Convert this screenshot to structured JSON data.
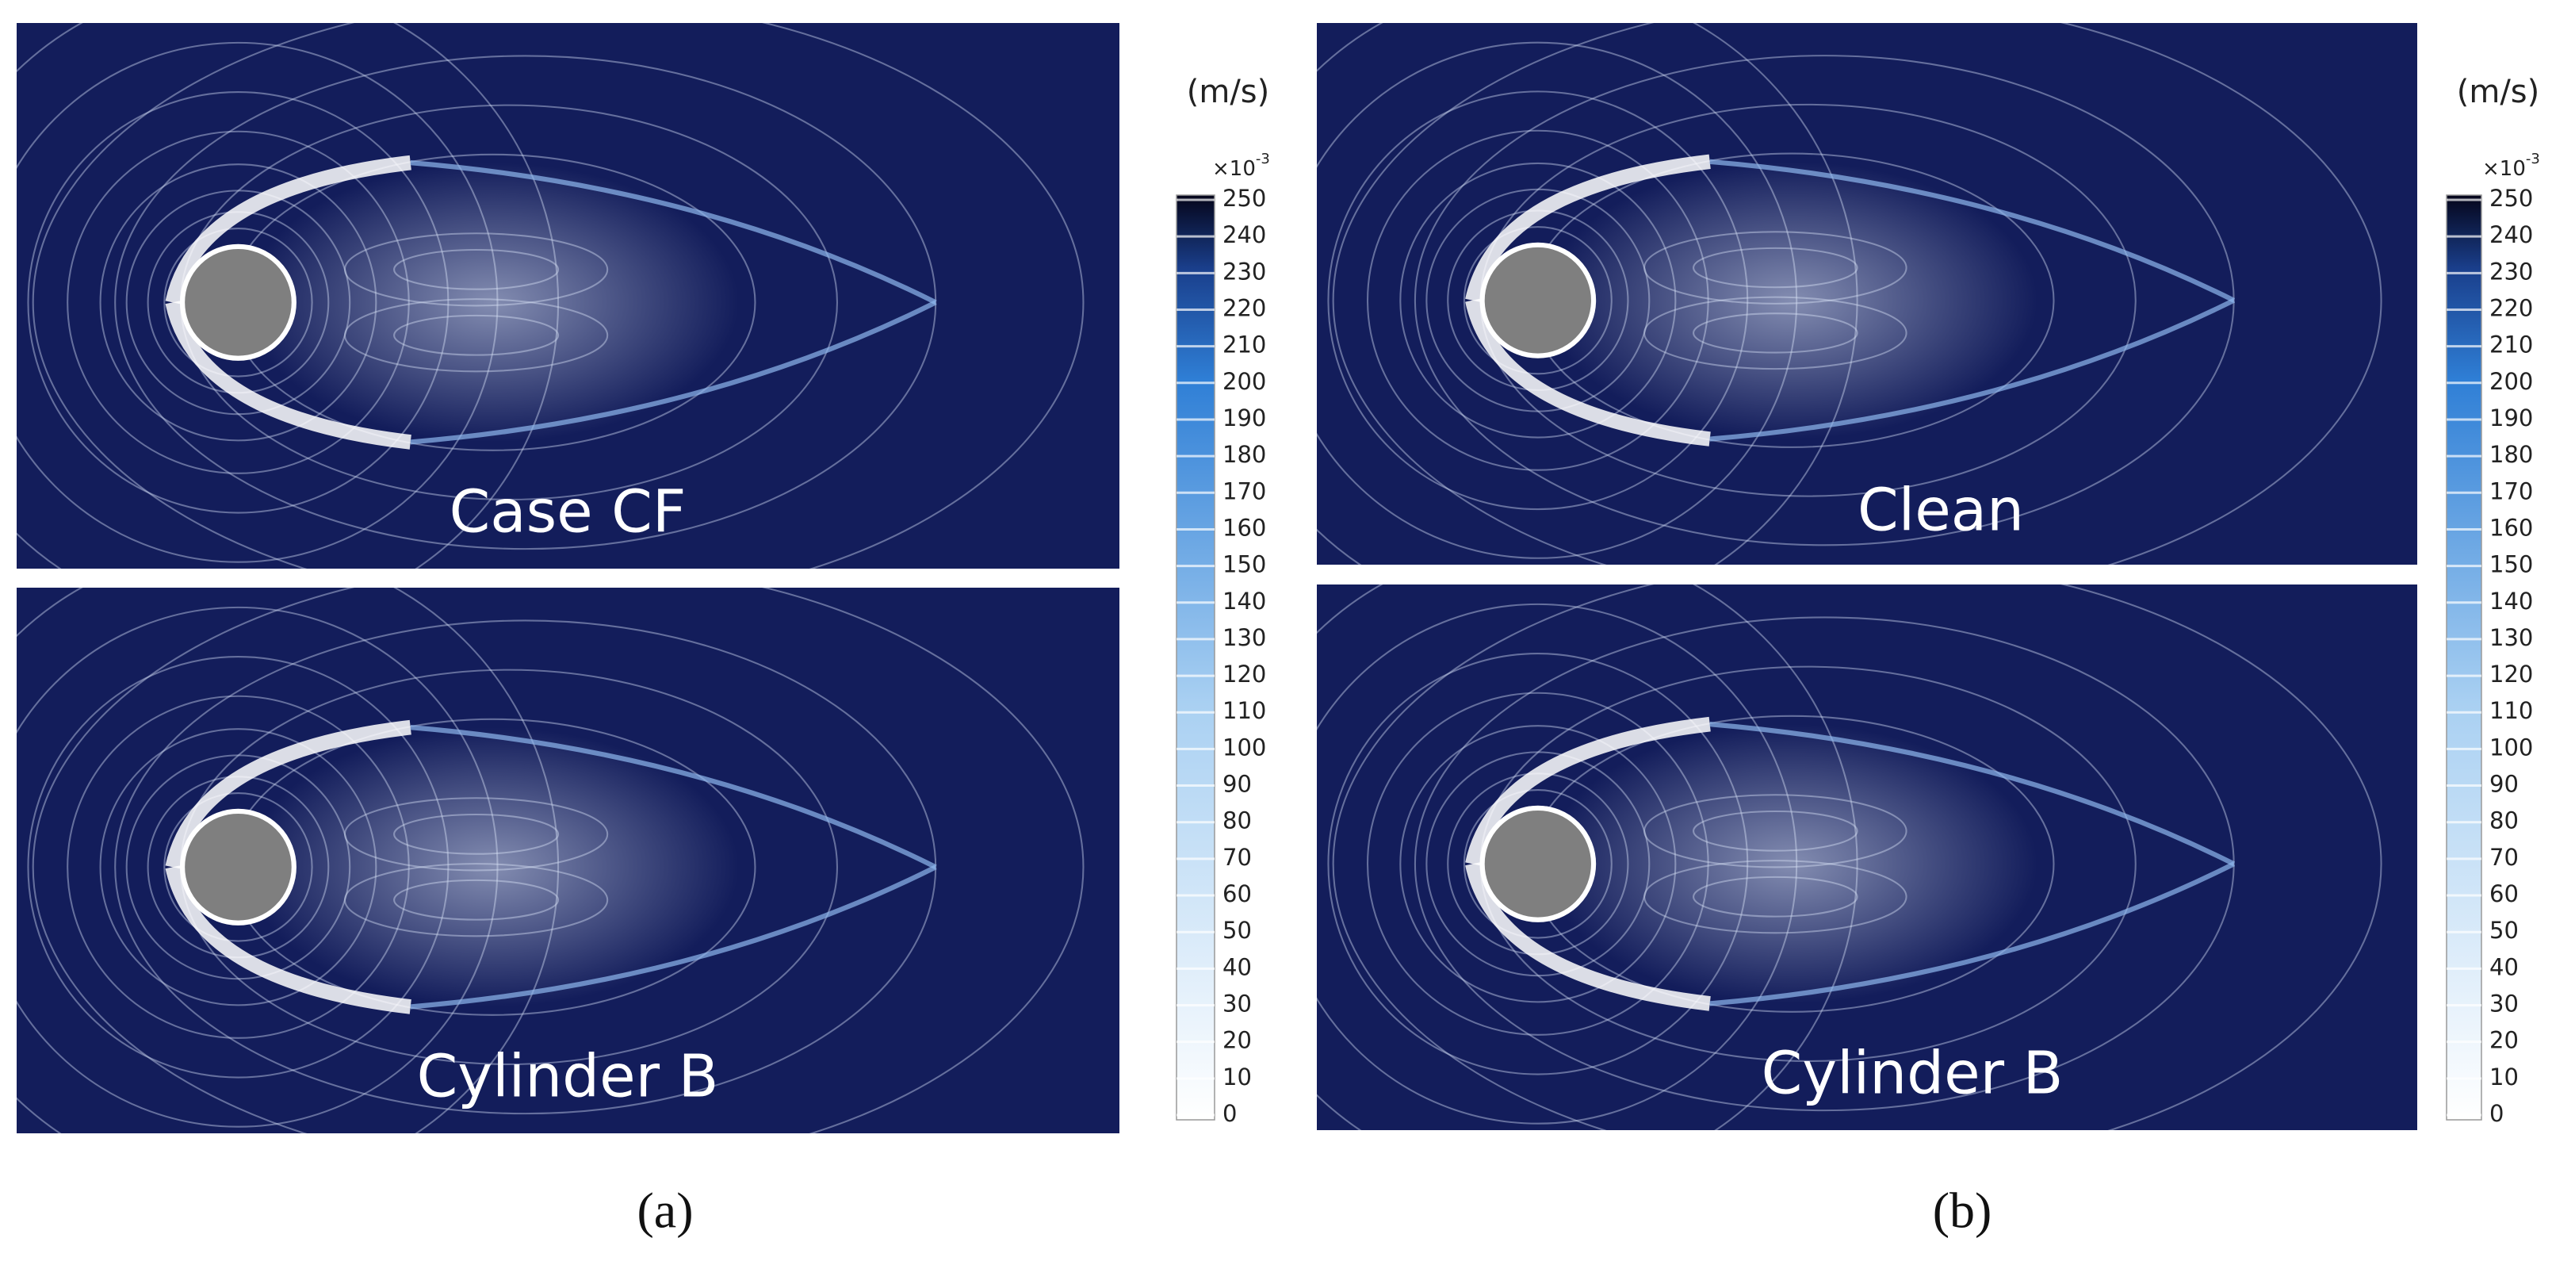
{
  "panels": [
    {
      "label": "Case CF"
    },
    {
      "label": "Cylinder B"
    },
    {
      "label": "Clean"
    },
    {
      "label": "Cylinder B"
    }
  ],
  "colorbars": [
    {
      "unit": "(m/s)",
      "multiplier": "×10",
      "exponent": "-3",
      "ticks": [
        0,
        10,
        20,
        30,
        40,
        50,
        60,
        70,
        80,
        90,
        100,
        110,
        120,
        130,
        140,
        150,
        160,
        170,
        180,
        190,
        200,
        210,
        220,
        230,
        240,
        250
      ]
    },
    {
      "unit": "(m/s)",
      "multiplier": "×10",
      "exponent": "-3",
      "ticks": [
        0,
        10,
        20,
        30,
        40,
        50,
        60,
        70,
        80,
        90,
        100,
        110,
        120,
        130,
        140,
        150,
        160,
        170,
        180,
        190,
        200,
        210,
        220,
        230,
        240,
        250
      ]
    }
  ],
  "captions": [
    "(a)",
    "(b)"
  ]
}
